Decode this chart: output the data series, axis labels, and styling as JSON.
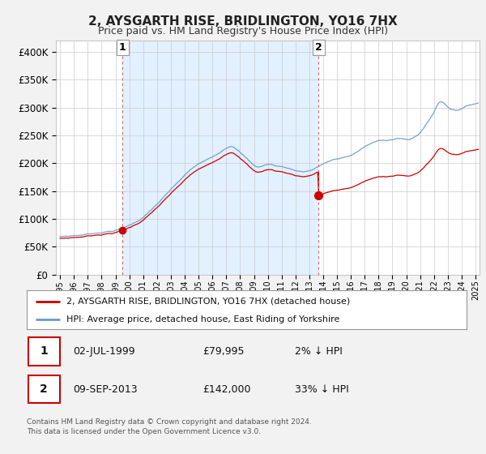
{
  "title": "2, AYSGARTH RISE, BRIDLINGTON, YO16 7HX",
  "subtitle": "Price paid vs. HM Land Registry's House Price Index (HPI)",
  "ylim": [
    0,
    420000
  ],
  "yticks": [
    0,
    50000,
    100000,
    150000,
    200000,
    250000,
    300000,
    350000,
    400000
  ],
  "ytick_labels": [
    "£0",
    "£50K",
    "£100K",
    "£150K",
    "£200K",
    "£250K",
    "£300K",
    "£350K",
    "£400K"
  ],
  "bg_color": "#f2f2f2",
  "plot_bg_color": "#ffffff",
  "grid_color": "#cccccc",
  "shade_color": "#ddeeff",
  "legend_entries": [
    "2, AYSGARTH RISE, BRIDLINGTON, YO16 7HX (detached house)",
    "HPI: Average price, detached house, East Riding of Yorkshire"
  ],
  "footnote": "Contains HM Land Registry data © Crown copyright and database right 2024.\nThis data is licensed under the Open Government Licence v3.0.",
  "hpi_color": "#6699cc",
  "price_color": "#cc0000",
  "marker_color": "#cc0000",
  "dashed_color": "#cc6666",
  "sale1_year": 1999.5,
  "sale1_price": 79995,
  "sale2_year": 2013.67,
  "sale2_price": 142000,
  "xmin": 1995.0,
  "xmax": 2025.3
}
